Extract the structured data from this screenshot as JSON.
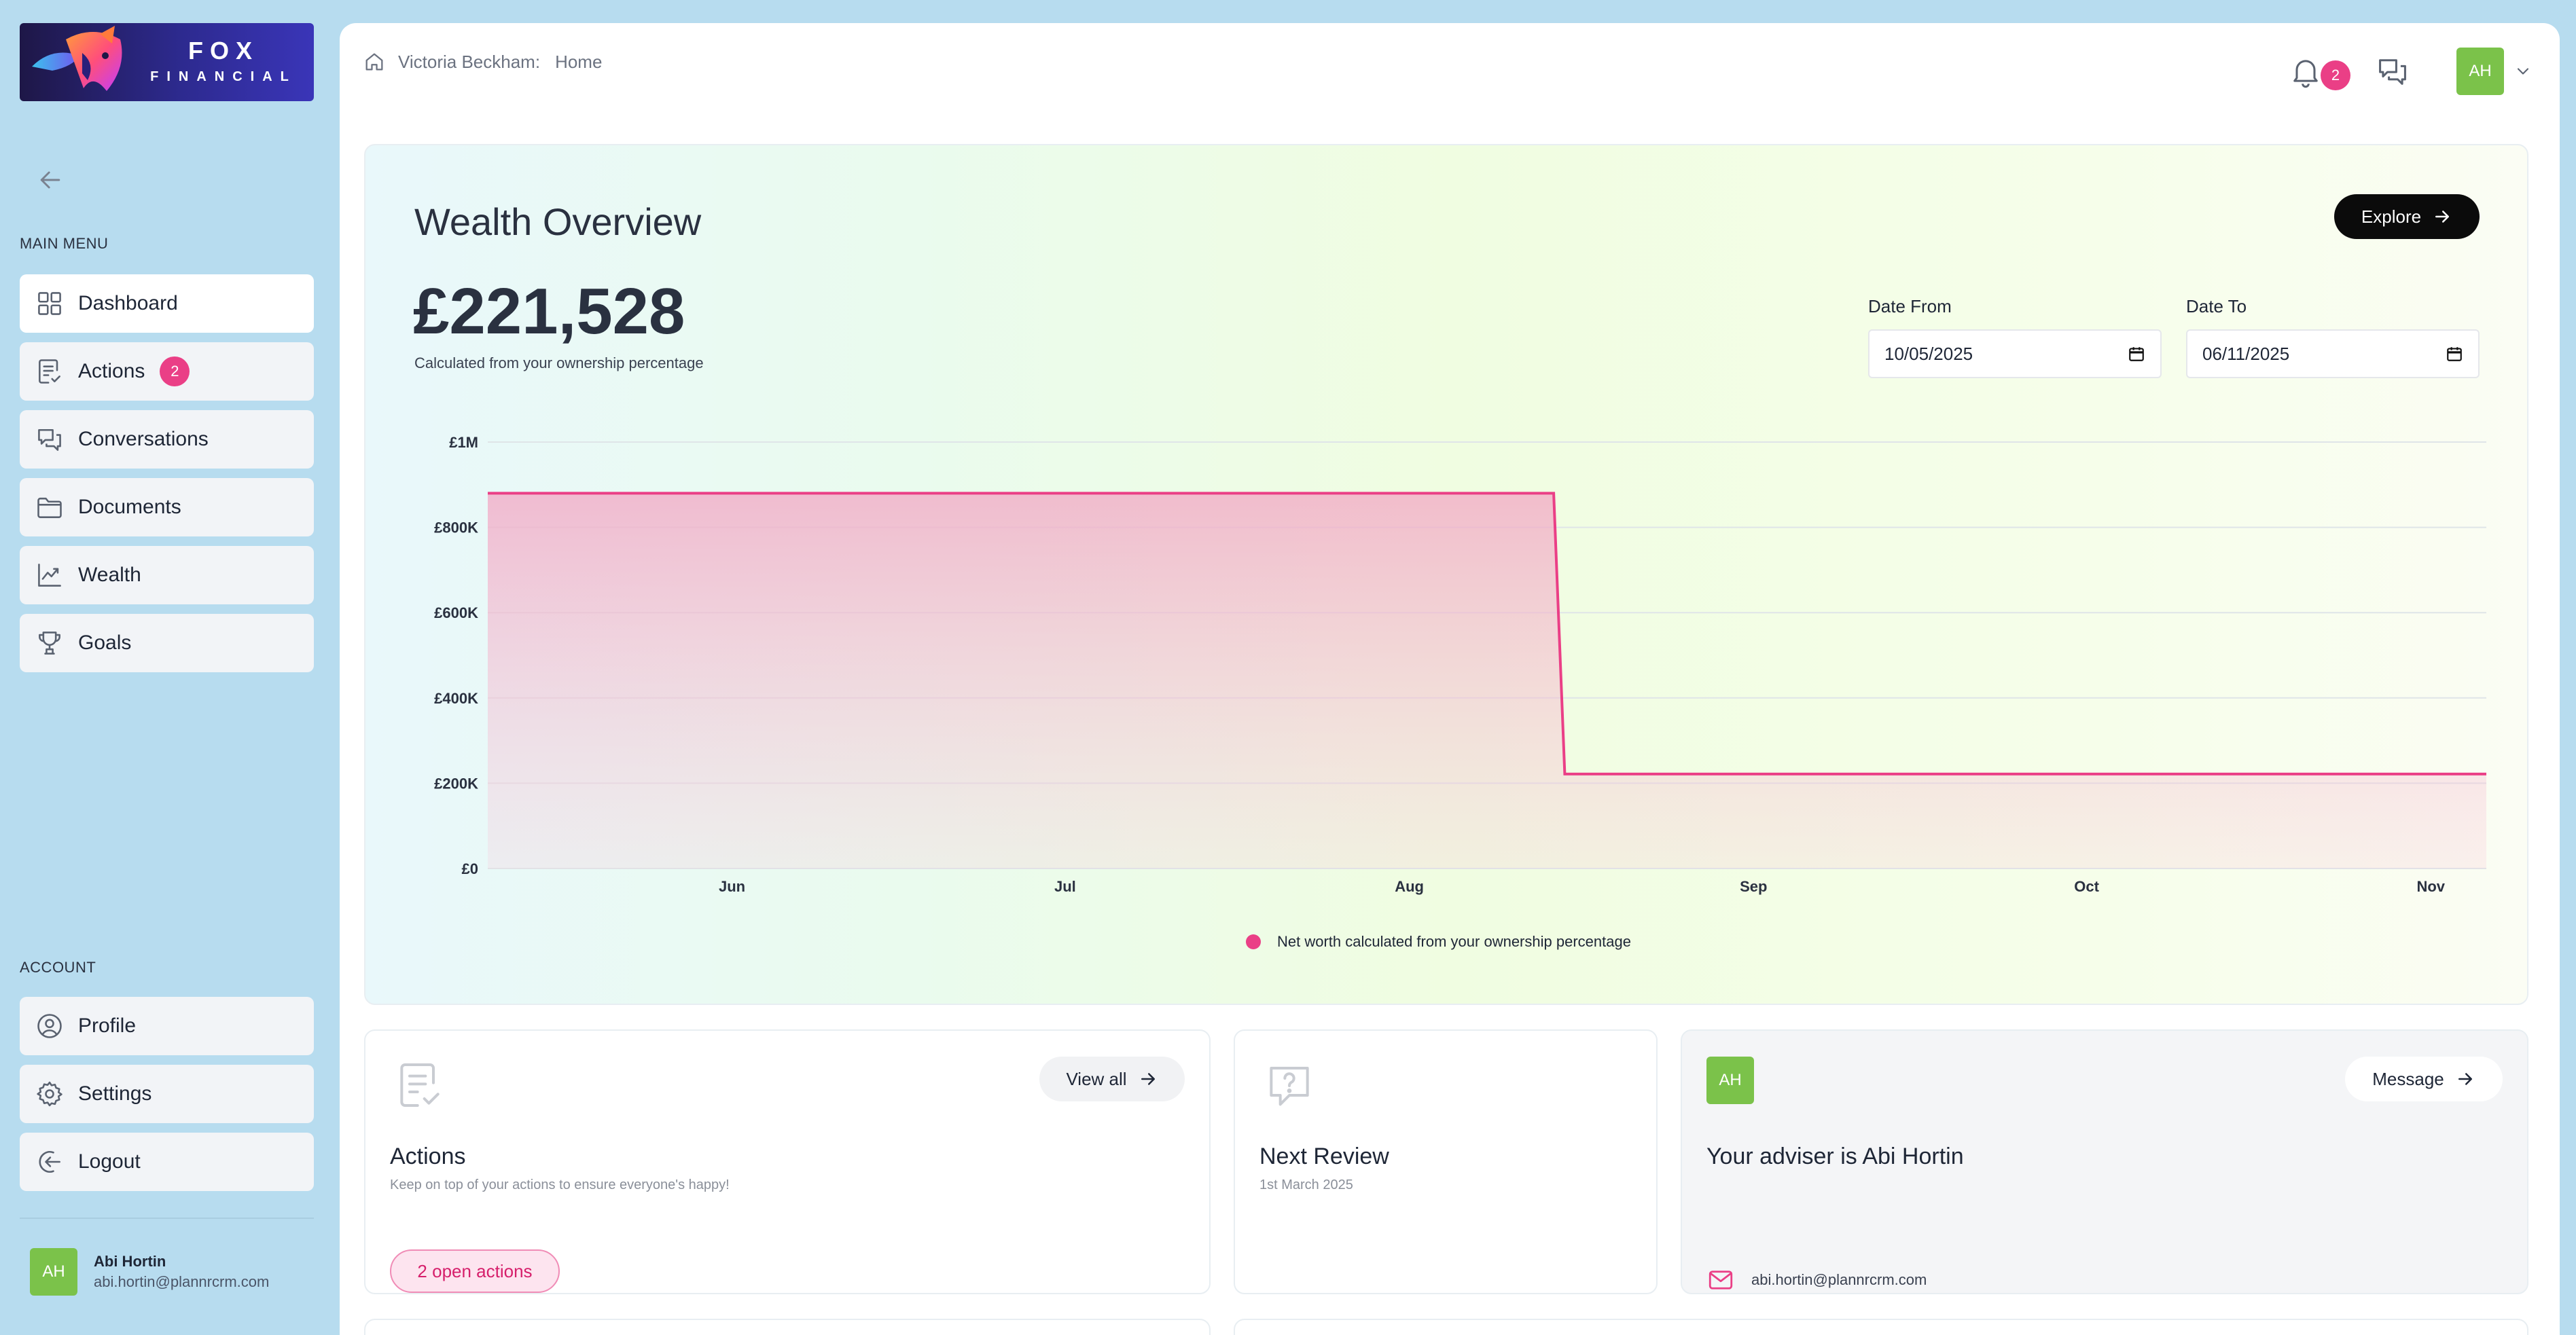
{
  "brand": {
    "name": "FOX",
    "subtitle": "FINANCIAL",
    "colors": {
      "primary": "#2d2a8f",
      "accent": "#ea3f86",
      "avatar": "#7bc24a"
    }
  },
  "sidebar": {
    "main_menu_label": "MAIN MENU",
    "items": [
      {
        "label": "Dashboard",
        "icon": "grid-icon",
        "active": true
      },
      {
        "label": "Actions",
        "icon": "clipboard-check-icon",
        "badge": "2"
      },
      {
        "label": "Conversations",
        "icon": "chat-bubbles-icon"
      },
      {
        "label": "Documents",
        "icon": "folder-icon"
      },
      {
        "label": "Wealth",
        "icon": "chart-line-icon"
      },
      {
        "label": "Goals",
        "icon": "trophy-icon"
      }
    ],
    "account_label": "ACCOUNT",
    "account_items": [
      {
        "label": "Profile",
        "icon": "user-circle-icon"
      },
      {
        "label": "Settings",
        "icon": "gear-icon"
      },
      {
        "label": "Logout",
        "icon": "logout-icon"
      }
    ],
    "user": {
      "initials": "AH",
      "name": "Abi Hortin",
      "email": "abi.hortin@plannrcrm.com"
    }
  },
  "header": {
    "breadcrumb": [
      "Victoria Beckham:",
      "Home"
    ],
    "notification_count": "2",
    "avatar_initials": "AH"
  },
  "wealth": {
    "title": "Wealth Overview",
    "total": "£221,528",
    "caption": "Calculated from your ownership percentage",
    "explore_label": "Explore",
    "date_from": {
      "label": "Date From",
      "value": "10/05/2025"
    },
    "date_to": {
      "label": "Date To",
      "value": "06/11/2025"
    },
    "legend": "Net worth calculated from your ownership percentage"
  },
  "chart_data": {
    "type": "area",
    "x": [
      "2025-05-10",
      "2025-08-14",
      "2025-08-15",
      "2025-11-06"
    ],
    "series": [
      {
        "name": "Net worth calculated from your ownership percentage",
        "values": [
          880000,
          880000,
          221528,
          221528
        ],
        "color": "#ea3f86"
      }
    ],
    "x_tick_labels": [
      "Jun",
      "Jul",
      "Aug",
      "Sep",
      "Oct",
      "Nov"
    ],
    "x_tick_dates": [
      "2025-06-01",
      "2025-07-01",
      "2025-08-01",
      "2025-09-01",
      "2025-10-01",
      "2025-11-01"
    ],
    "y_ticks": [
      0,
      200000,
      400000,
      600000,
      800000,
      1000000
    ],
    "y_tick_labels": [
      "£0",
      "£200K",
      "£400K",
      "£600K",
      "£800K",
      "£1M"
    ],
    "ylim": [
      0,
      1000000
    ],
    "xlim": [
      "2025-05-10",
      "2025-11-06"
    ],
    "grid": true,
    "legend_position": "bottom-center"
  },
  "cards": {
    "actions": {
      "title": "Actions",
      "subtitle": "Keep on top of your actions to ensure everyone's happy!",
      "button_label": "View all",
      "pill_label": "2 open actions"
    },
    "review": {
      "title": "Next Review",
      "subtitle": "1st March 2025"
    },
    "adviser": {
      "initials": "AH",
      "title": "Your adviser is Abi Hortin",
      "button_label": "Message",
      "email": "abi.hortin@plannrcrm.com"
    }
  }
}
